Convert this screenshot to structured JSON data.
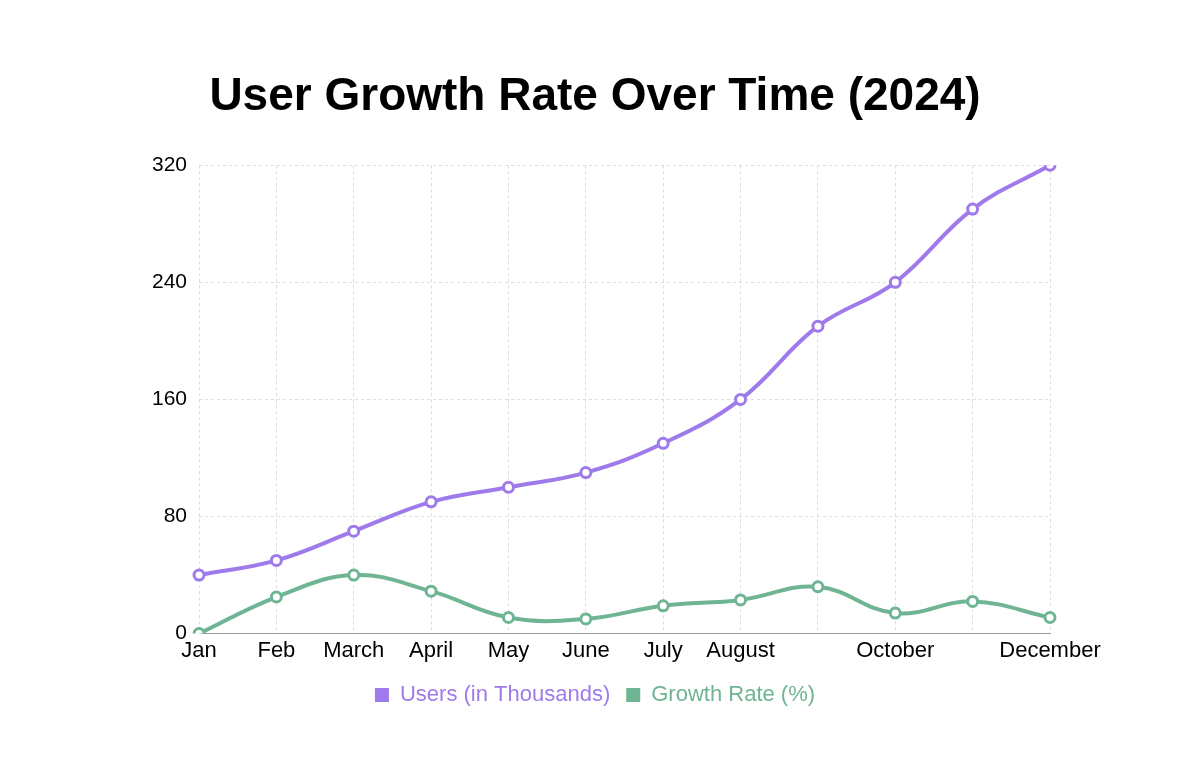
{
  "chart_data": {
    "type": "line",
    "title": "User Growth Rate Over Time (2024)",
    "categories": [
      "Jan",
      "Feb",
      "March",
      "April",
      "May",
      "June",
      "July",
      "August",
      null,
      "October",
      null,
      "December"
    ],
    "series": [
      {
        "name": "Users (in Thousands)",
        "color": "#9f7aea",
        "values": [
          40,
          50,
          70,
          90,
          100,
          110,
          130,
          160,
          210,
          240,
          290,
          320
        ]
      },
      {
        "name": "Growth Rate (%)",
        "color": "#6fb593",
        "values": [
          0,
          25,
          40,
          29,
          11,
          10,
          19,
          23,
          32,
          14,
          22,
          11
        ]
      }
    ],
    "ylim": [
      0,
      320
    ],
    "yticks": [
      0,
      80,
      160,
      240,
      320
    ],
    "grid": true,
    "legend": "bottom",
    "marker": "circle"
  }
}
